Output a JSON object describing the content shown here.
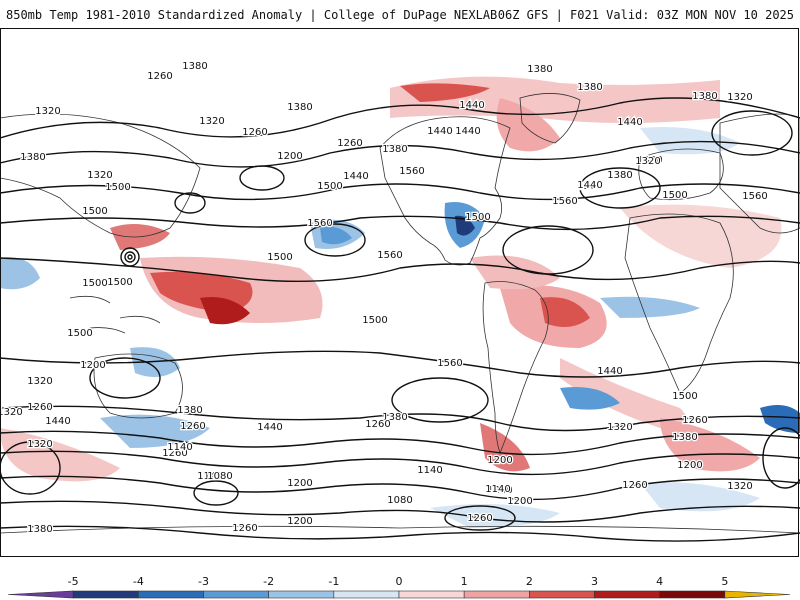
{
  "header": {
    "left_title": "850mb Temp 1981-2010 Standardized Anomaly | College of DuPage NEXLAB",
    "right_title": "06Z GFS | F021 Valid: 03Z MON NOV 10 2025"
  },
  "colorbar": {
    "ticks": [
      "-5",
      "-4",
      "-3",
      "-2",
      "-1",
      "0",
      "1",
      "2",
      "3",
      "4",
      "5"
    ],
    "colors": [
      "#6a3d9a",
      "#1f3b7a",
      "#2b6cb8",
      "#5b9bd5",
      "#9cc3e6",
      "#d6e6f5",
      "#f7d6d6",
      "#eea3a3",
      "#d9534f",
      "#b01c1c",
      "#7a0a0a",
      "#e8b400"
    ]
  },
  "contour_labels": [
    {
      "text": "1380"
    },
    {
      "text": "1260"
    },
    {
      "text": "1320"
    },
    {
      "text": "1380"
    },
    {
      "text": "1320"
    },
    {
      "text": "1260"
    },
    {
      "text": "1200"
    },
    {
      "text": "1260"
    },
    {
      "text": "1380"
    },
    {
      "text": "1440"
    },
    {
      "text": "1500"
    },
    {
      "text": "1380"
    },
    {
      "text": "1320"
    },
    {
      "text": "1500"
    },
    {
      "text": "1440"
    },
    {
      "text": "1380"
    },
    {
      "text": "1380"
    },
    {
      "text": "1440"
    },
    {
      "text": "1500"
    },
    {
      "text": "1440"
    },
    {
      "text": "1320"
    },
    {
      "text": "1560"
    },
    {
      "text": "1560"
    },
    {
      "text": "1500"
    },
    {
      "text": "1500"
    },
    {
      "text": "1560"
    },
    {
      "text": "1500"
    },
    {
      "text": "1440"
    },
    {
      "text": "1500"
    },
    {
      "text": "1560"
    },
    {
      "text": "1320"
    },
    {
      "text": "1380"
    },
    {
      "text": "1440"
    },
    {
      "text": "1320"
    },
    {
      "text": "1380"
    },
    {
      "text": "1500"
    },
    {
      "text": "1560"
    },
    {
      "text": "1500"
    },
    {
      "text": "1560"
    },
    {
      "text": "1500"
    },
    {
      "text": "1440"
    },
    {
      "text": "1500"
    },
    {
      "text": "1440"
    },
    {
      "text": "1380"
    },
    {
      "text": "1260"
    },
    {
      "text": "1320"
    },
    {
      "text": "1260"
    },
    {
      "text": "1200"
    },
    {
      "text": "1260"
    },
    {
      "text": "1140"
    },
    {
      "text": "1080"
    },
    {
      "text": "1200"
    },
    {
      "text": "1320"
    },
    {
      "text": "1440"
    },
    {
      "text": "1380"
    },
    {
      "text": "1260"
    },
    {
      "text": "1140"
    },
    {
      "text": "1200"
    },
    {
      "text": "1140"
    },
    {
      "text": "1080"
    },
    {
      "text": "1200"
    },
    {
      "text": "1260"
    },
    {
      "text": "1320"
    },
    {
      "text": "1380"
    },
    {
      "text": "1260"
    },
    {
      "text": "1200"
    },
    {
      "text": "1140"
    },
    {
      "text": "1320"
    },
    {
      "text": "1260"
    },
    {
      "text": "1200"
    },
    {
      "text": "1260"
    },
    {
      "text": "1380"
    },
    {
      "text": "1320"
    },
    {
      "text": "1500"
    },
    {
      "text": "1200"
    }
  ]
}
